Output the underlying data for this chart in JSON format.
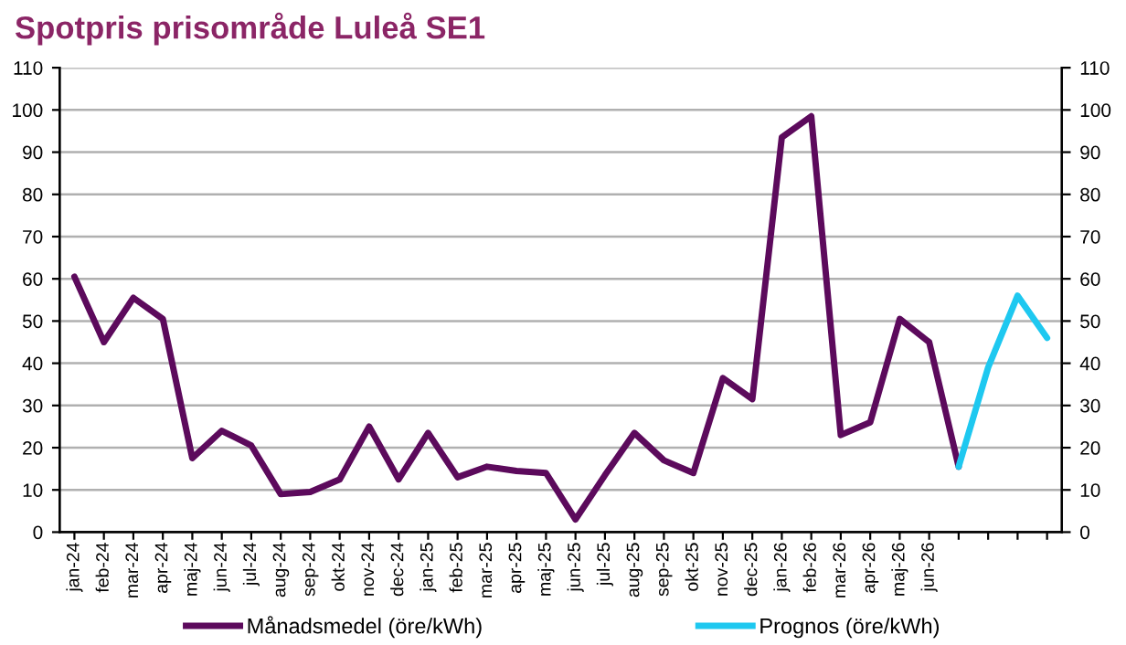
{
  "chart_data": {
    "type": "line",
    "title": "Spotpris prisområde Luleå SE1",
    "categories": [
      "jan-24",
      "feb-24",
      "mar-24",
      "apr-24",
      "maj-24",
      "jun-24",
      "jul-24",
      "aug-24",
      "sep-24",
      "okt-24",
      "nov-24",
      "dec-24",
      "jan-25",
      "feb-25",
      "mar-25",
      "apr-25",
      "maj-25",
      "jun-25",
      "jul-25",
      "aug-25",
      "sep-25",
      "okt-25",
      "nov-25",
      "dec-25",
      "jan-26",
      "feb-26",
      "mar-26",
      "apr-26",
      "maj-26",
      "jun-26",
      null,
      null,
      null,
      null
    ],
    "series": [
      {
        "name": "Månadsmedel (öre/kWh)",
        "color": "#5c0a5c",
        "values": [
          60.5,
          45,
          55.5,
          50.5,
          17.5,
          24,
          20.5,
          9,
          9.5,
          12.5,
          25,
          12.5,
          23.5,
          13,
          15.5,
          14.5,
          14,
          3,
          13.5,
          23.5,
          17,
          14,
          36.5,
          31.5,
          93.5,
          98.5,
          23,
          26,
          50.5,
          45,
          15.5,
          null,
          null,
          null
        ]
      },
      {
        "name": "Prognos (öre/kWh)",
        "color": "#1ec8f0",
        "values": [
          null,
          null,
          null,
          null,
          null,
          null,
          null,
          null,
          null,
          null,
          null,
          null,
          null,
          null,
          null,
          null,
          null,
          null,
          null,
          null,
          null,
          null,
          null,
          null,
          null,
          null,
          null,
          null,
          null,
          null,
          15.5,
          39,
          56,
          46
        ]
      }
    ],
    "ylim": [
      0,
      110
    ],
    "yticks": [
      0,
      10,
      20,
      30,
      40,
      50,
      60,
      70,
      80,
      90,
      100,
      110
    ],
    "y2lim": [
      0,
      110
    ],
    "y2ticks": [
      0,
      10,
      20,
      30,
      40,
      50,
      60,
      70,
      80,
      90,
      100,
      110
    ],
    "grid": "y",
    "legend": "bottom",
    "marker": "none",
    "line_style": "solid"
  }
}
